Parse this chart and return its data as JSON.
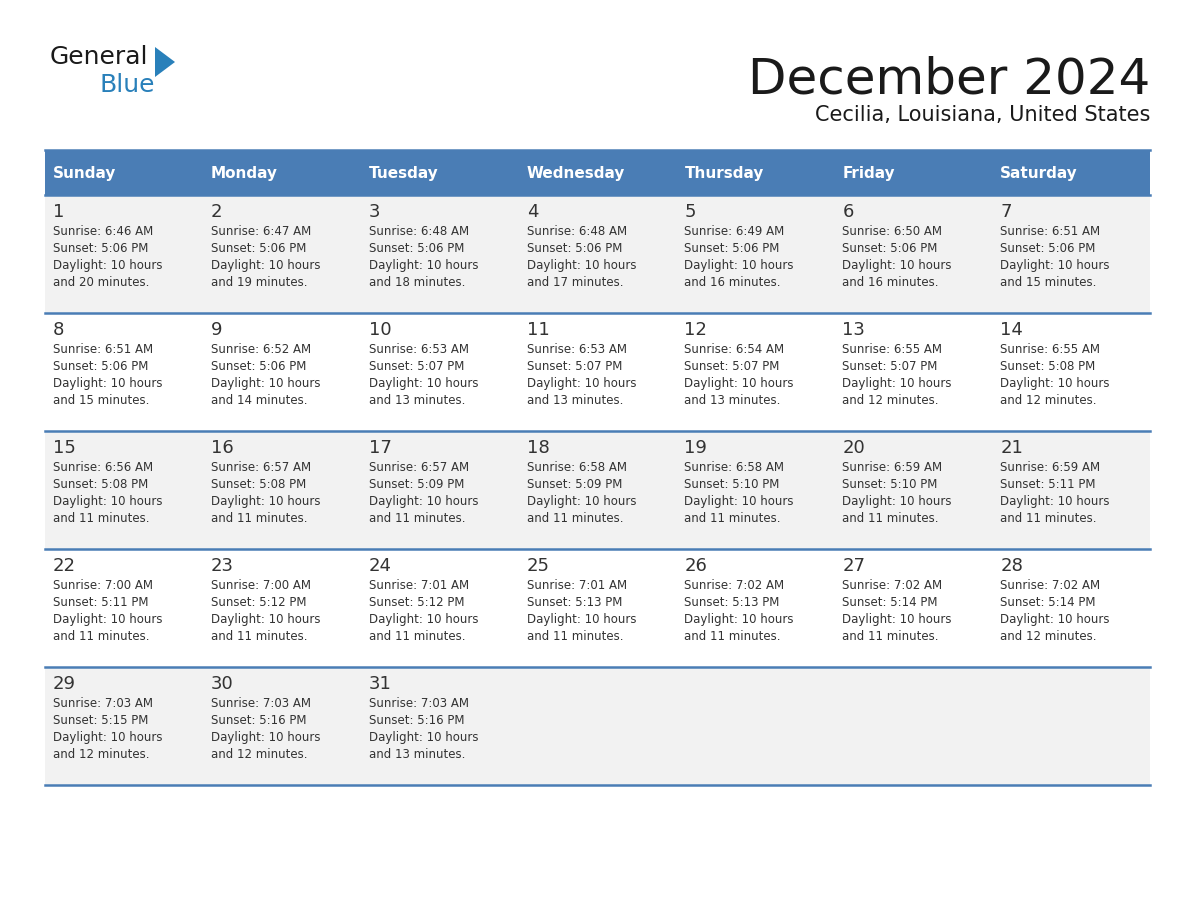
{
  "title": "December 2024",
  "subtitle": "Cecilia, Louisiana, United States",
  "days_of_week": [
    "Sunday",
    "Monday",
    "Tuesday",
    "Wednesday",
    "Thursday",
    "Friday",
    "Saturday"
  ],
  "header_bg": "#4a7db5",
  "header_text_color": "#FFFFFF",
  "row_bg_odd": "#F2F2F2",
  "row_bg_even": "#FFFFFF",
  "cell_text_color": "#333333",
  "day_num_color": "#333333",
  "separator_color": "#4a7db5",
  "background_color": "#FFFFFF",
  "title_color": "#1a1a1a",
  "subtitle_color": "#1a1a1a",
  "logo_general_color": "#1a1a1a",
  "logo_blue_color": "#2980BA",
  "logo_triangle_color": "#2980BA",
  "weeks": [
    [
      {
        "day": 1,
        "sunrise": "6:46 AM",
        "sunset": "5:06 PM",
        "daylight": "10 hours and 20 minutes."
      },
      {
        "day": 2,
        "sunrise": "6:47 AM",
        "sunset": "5:06 PM",
        "daylight": "10 hours and 19 minutes."
      },
      {
        "day": 3,
        "sunrise": "6:48 AM",
        "sunset": "5:06 PM",
        "daylight": "10 hours and 18 minutes."
      },
      {
        "day": 4,
        "sunrise": "6:48 AM",
        "sunset": "5:06 PM",
        "daylight": "10 hours and 17 minutes."
      },
      {
        "day": 5,
        "sunrise": "6:49 AM",
        "sunset": "5:06 PM",
        "daylight": "10 hours and 16 minutes."
      },
      {
        "day": 6,
        "sunrise": "6:50 AM",
        "sunset": "5:06 PM",
        "daylight": "10 hours and 16 minutes."
      },
      {
        "day": 7,
        "sunrise": "6:51 AM",
        "sunset": "5:06 PM",
        "daylight": "10 hours and 15 minutes."
      }
    ],
    [
      {
        "day": 8,
        "sunrise": "6:51 AM",
        "sunset": "5:06 PM",
        "daylight": "10 hours and 15 minutes."
      },
      {
        "day": 9,
        "sunrise": "6:52 AM",
        "sunset": "5:06 PM",
        "daylight": "10 hours and 14 minutes."
      },
      {
        "day": 10,
        "sunrise": "6:53 AM",
        "sunset": "5:07 PM",
        "daylight": "10 hours and 13 minutes."
      },
      {
        "day": 11,
        "sunrise": "6:53 AM",
        "sunset": "5:07 PM",
        "daylight": "10 hours and 13 minutes."
      },
      {
        "day": 12,
        "sunrise": "6:54 AM",
        "sunset": "5:07 PM",
        "daylight": "10 hours and 13 minutes."
      },
      {
        "day": 13,
        "sunrise": "6:55 AM",
        "sunset": "5:07 PM",
        "daylight": "10 hours and 12 minutes."
      },
      {
        "day": 14,
        "sunrise": "6:55 AM",
        "sunset": "5:08 PM",
        "daylight": "10 hours and 12 minutes."
      }
    ],
    [
      {
        "day": 15,
        "sunrise": "6:56 AM",
        "sunset": "5:08 PM",
        "daylight": "10 hours and 11 minutes."
      },
      {
        "day": 16,
        "sunrise": "6:57 AM",
        "sunset": "5:08 PM",
        "daylight": "10 hours and 11 minutes."
      },
      {
        "day": 17,
        "sunrise": "6:57 AM",
        "sunset": "5:09 PM",
        "daylight": "10 hours and 11 minutes."
      },
      {
        "day": 18,
        "sunrise": "6:58 AM",
        "sunset": "5:09 PM",
        "daylight": "10 hours and 11 minutes."
      },
      {
        "day": 19,
        "sunrise": "6:58 AM",
        "sunset": "5:10 PM",
        "daylight": "10 hours and 11 minutes."
      },
      {
        "day": 20,
        "sunrise": "6:59 AM",
        "sunset": "5:10 PM",
        "daylight": "10 hours and 11 minutes."
      },
      {
        "day": 21,
        "sunrise": "6:59 AM",
        "sunset": "5:11 PM",
        "daylight": "10 hours and 11 minutes."
      }
    ],
    [
      {
        "day": 22,
        "sunrise": "7:00 AM",
        "sunset": "5:11 PM",
        "daylight": "10 hours and 11 minutes."
      },
      {
        "day": 23,
        "sunrise": "7:00 AM",
        "sunset": "5:12 PM",
        "daylight": "10 hours and 11 minutes."
      },
      {
        "day": 24,
        "sunrise": "7:01 AM",
        "sunset": "5:12 PM",
        "daylight": "10 hours and 11 minutes."
      },
      {
        "day": 25,
        "sunrise": "7:01 AM",
        "sunset": "5:13 PM",
        "daylight": "10 hours and 11 minutes."
      },
      {
        "day": 26,
        "sunrise": "7:02 AM",
        "sunset": "5:13 PM",
        "daylight": "10 hours and 11 minutes."
      },
      {
        "day": 27,
        "sunrise": "7:02 AM",
        "sunset": "5:14 PM",
        "daylight": "10 hours and 11 minutes."
      },
      {
        "day": 28,
        "sunrise": "7:02 AM",
        "sunset": "5:14 PM",
        "daylight": "10 hours and 12 minutes."
      }
    ],
    [
      {
        "day": 29,
        "sunrise": "7:03 AM",
        "sunset": "5:15 PM",
        "daylight": "10 hours and 12 minutes."
      },
      {
        "day": 30,
        "sunrise": "7:03 AM",
        "sunset": "5:16 PM",
        "daylight": "10 hours and 12 minutes."
      },
      {
        "day": 31,
        "sunrise": "7:03 AM",
        "sunset": "5:16 PM",
        "daylight": "10 hours and 13 minutes."
      },
      null,
      null,
      null,
      null
    ]
  ]
}
